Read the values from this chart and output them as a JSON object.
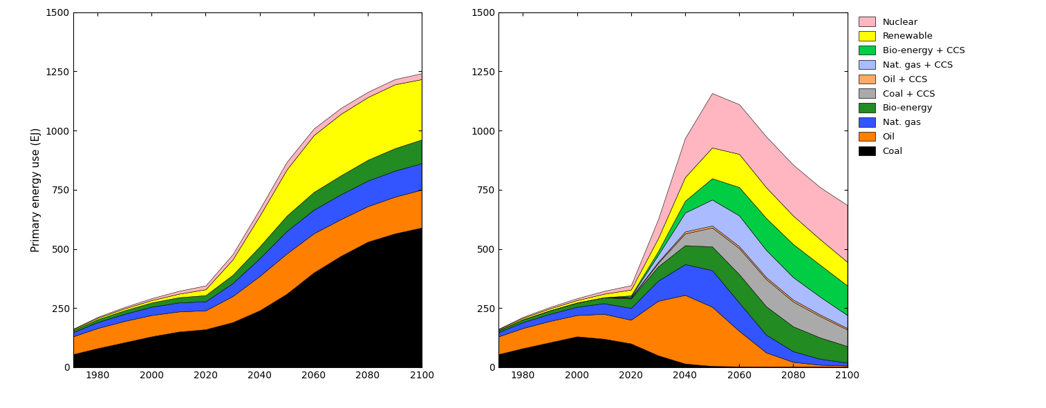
{
  "years": [
    1971,
    1980,
    1990,
    2000,
    2010,
    2020,
    2030,
    2040,
    2050,
    2060,
    2070,
    2080,
    2090,
    2100
  ],
  "chart1": {
    "Coal": [
      55,
      80,
      105,
      130,
      150,
      160,
      190,
      240,
      310,
      400,
      470,
      530,
      565,
      590
    ],
    "Oil": [
      75,
      85,
      90,
      90,
      85,
      80,
      110,
      145,
      170,
      165,
      155,
      150,
      155,
      160
    ],
    "Nat. gas": [
      18,
      25,
      30,
      35,
      38,
      38,
      55,
      75,
      95,
      100,
      105,
      108,
      110,
      112
    ],
    "Bio-energy": [
      8,
      12,
      15,
      18,
      22,
      26,
      35,
      50,
      65,
      75,
      80,
      88,
      95,
      100
    ],
    "Renewable": [
      4,
      6,
      8,
      10,
      15,
      25,
      65,
      130,
      195,
      240,
      260,
      265,
      270,
      255
    ],
    "Nuclear": [
      2,
      4,
      6,
      8,
      12,
      16,
      22,
      28,
      32,
      28,
      25,
      22,
      22,
      25
    ]
  },
  "chart2": {
    "Coal": [
      55,
      80,
      105,
      130,
      120,
      100,
      50,
      15,
      5,
      3,
      2,
      2,
      2,
      2
    ],
    "Oil": [
      75,
      85,
      90,
      90,
      105,
      100,
      230,
      290,
      250,
      150,
      60,
      20,
      8,
      5
    ],
    "Nat. gas": [
      18,
      25,
      30,
      35,
      45,
      50,
      85,
      130,
      155,
      120,
      75,
      45,
      25,
      12
    ],
    "Bio-energy": [
      8,
      12,
      15,
      18,
      25,
      40,
      60,
      80,
      100,
      120,
      120,
      105,
      90,
      70
    ],
    "Coal + CCS": [
      0,
      0,
      0,
      0,
      0,
      3,
      15,
      50,
      80,
      110,
      115,
      105,
      90,
      70
    ],
    "Oil + CCS": [
      0,
      0,
      0,
      0,
      0,
      2,
      4,
      8,
      8,
      8,
      8,
      8,
      7,
      6
    ],
    "Nat. gas + CCS": [
      0,
      0,
      0,
      0,
      0,
      4,
      30,
      80,
      110,
      130,
      115,
      95,
      75,
      55
    ],
    "Bio-energy + CCS": [
      0,
      0,
      0,
      0,
      0,
      4,
      15,
      50,
      90,
      120,
      135,
      140,
      135,
      125
    ],
    "Renewable": [
      4,
      6,
      8,
      10,
      15,
      25,
      55,
      100,
      130,
      140,
      130,
      120,
      108,
      100
    ],
    "Nuclear": [
      2,
      4,
      6,
      8,
      12,
      18,
      80,
      165,
      230,
      210,
      215,
      215,
      220,
      240
    ]
  },
  "colors": {
    "Coal": "#000000",
    "Oil": "#FF7F00",
    "Nat. gas": "#3355FF",
    "Bio-energy": "#228B22",
    "Coal + CCS": "#AAAAAA",
    "Oil + CCS": "#FFAA66",
    "Nat. gas + CCS": "#AABBFF",
    "Bio-energy + CCS": "#00CC44",
    "Renewable": "#FFFF00",
    "Nuclear": "#FFB6C1"
  },
  "legend_labels": [
    "Nuclear",
    "Renewable",
    "Bio-energy + CCS",
    "Nat. gas + CCS",
    "Oil + CCS",
    "Coal + CCS",
    "Bio-energy",
    "Nat. gas",
    "Oil",
    "Coal"
  ],
  "ylabel": "Primary energy use (EJ)",
  "ylim": [
    0,
    1500
  ],
  "yticks": [
    0,
    250,
    500,
    750,
    1000,
    1250,
    1500
  ],
  "xlim": [
    1971,
    2100
  ],
  "xticks": [
    1980,
    2000,
    2020,
    2040,
    2060,
    2080,
    2100
  ]
}
